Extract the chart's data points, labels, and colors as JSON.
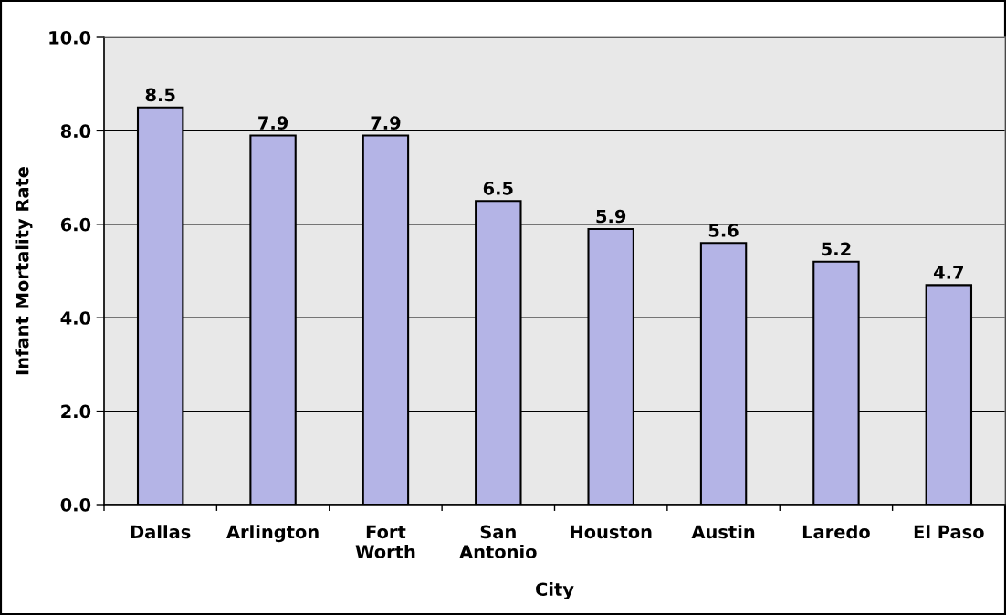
{
  "chart_data": {
    "type": "bar",
    "xlabel": "City",
    "ylabel": "Infant Mortality Rate",
    "categories": [
      "Dallas",
      "Arlington",
      "Fort\nWorth",
      "San\nAntonio",
      "Houston",
      "Austin",
      "Laredo",
      "El Paso"
    ],
    "values": [
      8.5,
      7.9,
      7.9,
      6.5,
      5.9,
      5.6,
      5.2,
      4.7
    ],
    "color": "#b4b4e6",
    "ylim": [
      0,
      10
    ],
    "yticks": [
      {
        "value": 0,
        "label": "0.0"
      },
      {
        "value": 2,
        "label": "2.0"
      },
      {
        "value": 4,
        "label": "4.0"
      },
      {
        "value": 6,
        "label": "6.0"
      },
      {
        "value": 8,
        "label": "8.0"
      },
      {
        "value": 10,
        "label": "10.0"
      }
    ],
    "grid": "y",
    "data_labels": true
  }
}
